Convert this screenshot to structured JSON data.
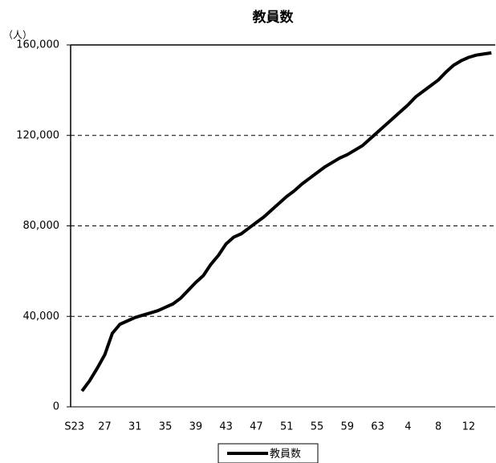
{
  "chart_data": {
    "type": "line",
    "title": "教員数",
    "y_unit_label": "（人）",
    "categories": [
      "S23",
      null,
      null,
      null,
      "27",
      null,
      null,
      null,
      "31",
      null,
      null,
      null,
      "35",
      null,
      null,
      null,
      "39",
      null,
      null,
      null,
      "43",
      null,
      null,
      null,
      "47",
      null,
      null,
      null,
      "51",
      null,
      null,
      null,
      "55",
      null,
      null,
      null,
      "59",
      null,
      null,
      null,
      "63",
      null,
      null,
      null,
      "4",
      null,
      null,
      null,
      "8",
      null,
      null,
      null,
      "12",
      null,
      null,
      null
    ],
    "series": [
      {
        "name": "教員数",
        "color": "#000000",
        "values": [
          null,
          7000,
          11500,
          17000,
          23000,
          32500,
          36500,
          38000,
          39500,
          40500,
          41500,
          42500,
          44000,
          45500,
          48000,
          51500,
          55000,
          58000,
          63000,
          67000,
          72000,
          75000,
          76500,
          79000,
          81500,
          84000,
          87000,
          90000,
          93000,
          95500,
          98500,
          101000,
          103500,
          106000,
          108000,
          110000,
          111500,
          113500,
          115500,
          118500,
          121500,
          124500,
          127500,
          130500,
          133500,
          137000,
          139500,
          142000,
          144500,
          148000,
          151000,
          153000,
          154500,
          155500,
          156000,
          156500
        ]
      }
    ],
    "ylim": [
      0,
      160000
    ],
    "yticks": [
      0,
      {
        "value": 40000,
        "label": "40,000"
      },
      {
        "value": 80000,
        "label": "80,000"
      },
      {
        "value": 120000,
        "label": "120,000"
      },
      {
        "value": 160000,
        "label": "160,000"
      }
    ],
    "grid": true,
    "legend": "bottom"
  }
}
